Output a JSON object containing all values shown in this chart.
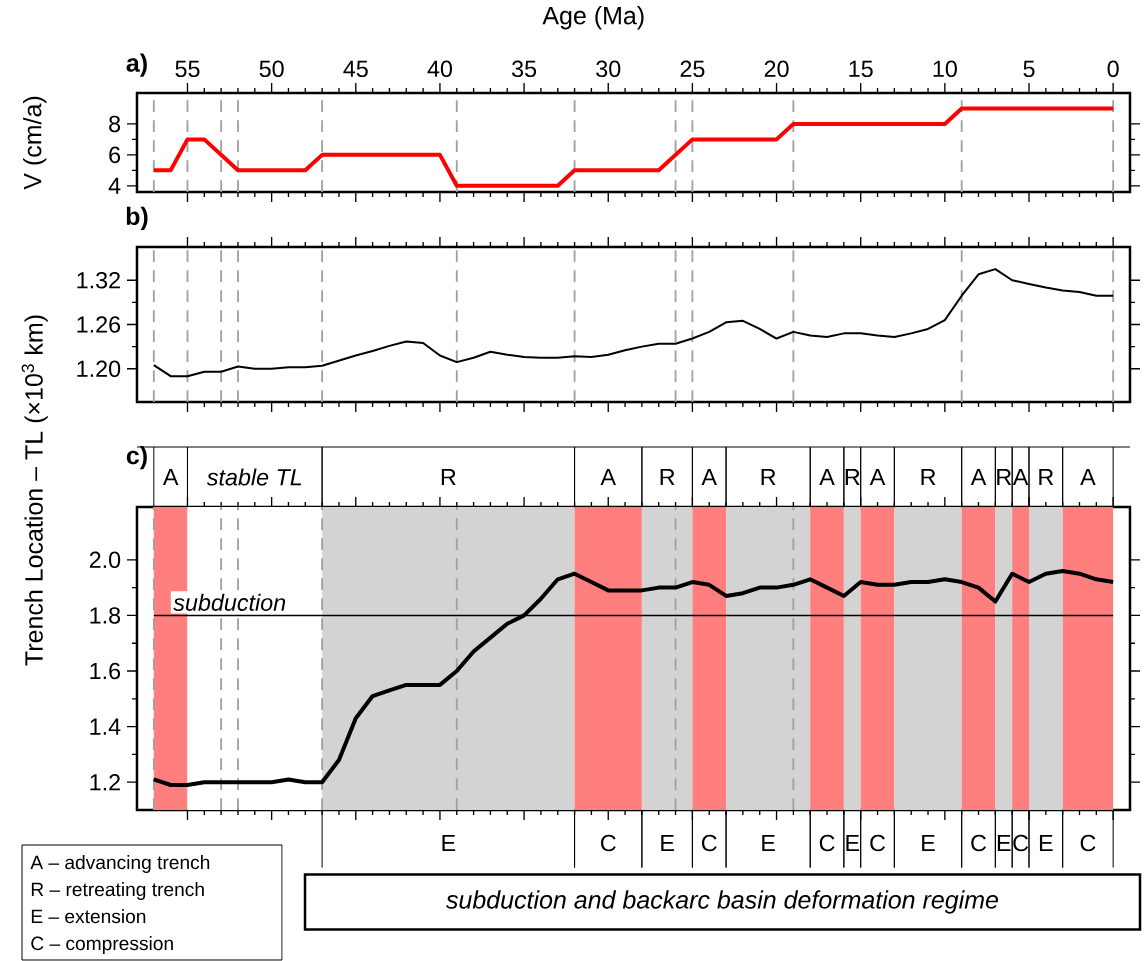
{
  "chart_data": [
    {
      "type": "line",
      "title": "a)",
      "xlabel": "Age (Ma)",
      "ylabel": "V (cm/a)",
      "color": "#ff0000",
      "x": [
        57,
        56,
        55,
        54,
        52,
        48,
        47,
        40,
        39,
        33,
        32,
        27,
        25,
        20,
        19,
        10,
        9,
        0
      ],
      "values": [
        5,
        5,
        7,
        7,
        5,
        5,
        6,
        6,
        4,
        4,
        5,
        5,
        7,
        7,
        8,
        8,
        9,
        9
      ],
      "xlim": [
        58,
        -1
      ],
      "ylim": [
        3.6,
        10
      ],
      "xticks": [
        55,
        50,
        45,
        40,
        35,
        30,
        25,
        20,
        15,
        10,
        5,
        0
      ],
      "yticks": [
        4,
        6,
        8
      ],
      "ref_lines": [
        {
          "axis": "x",
          "value": 57,
          "color": "#a0a0a0",
          "line_style": "dashed"
        },
        {
          "axis": "x",
          "value": 55,
          "color": "#a0a0a0",
          "line_style": "dashed"
        },
        {
          "axis": "x",
          "value": 53,
          "color": "#a0a0a0",
          "line_style": "dashed"
        },
        {
          "axis": "x",
          "value": 52,
          "color": "#a0a0a0",
          "line_style": "dashed"
        },
        {
          "axis": "x",
          "value": 47,
          "color": "#a0a0a0",
          "line_style": "dashed"
        },
        {
          "axis": "x",
          "value": 39,
          "color": "#a0a0a0",
          "line_style": "dashed"
        },
        {
          "axis": "x",
          "value": 32,
          "color": "#a0a0a0",
          "line_style": "dashed"
        },
        {
          "axis": "x",
          "value": 26,
          "color": "#a0a0a0",
          "line_style": "dashed"
        },
        {
          "axis": "x",
          "value": 25,
          "color": "#a0a0a0",
          "line_style": "dashed"
        },
        {
          "axis": "x",
          "value": 19,
          "color": "#a0a0a0",
          "line_style": "dashed"
        },
        {
          "axis": "x",
          "value": 9,
          "color": "#a0a0a0",
          "line_style": "dashed"
        },
        {
          "axis": "x",
          "value": 0,
          "color": "#a0a0a0",
          "line_style": "dashed"
        }
      ]
    },
    {
      "type": "line",
      "title": "b)",
      "color": "#000000",
      "tick_labels": "y",
      "x": [
        57,
        56,
        55,
        54,
        53,
        52,
        51,
        50,
        49,
        48,
        47,
        45,
        44,
        43,
        42,
        41,
        40,
        39,
        38,
        37,
        36,
        35,
        34,
        33,
        32,
        31,
        30,
        29,
        28,
        27,
        26,
        25,
        24,
        23,
        22,
        21,
        20,
        19,
        18,
        17,
        16,
        15,
        14,
        13,
        12,
        11,
        10,
        9,
        8,
        7,
        6,
        5,
        4,
        3,
        2,
        1,
        0
      ],
      "values": [
        1.205,
        1.19,
        1.19,
        1.196,
        1.196,
        1.203,
        1.2,
        1.2,
        1.202,
        1.202,
        1.204,
        1.218,
        1.224,
        1.231,
        1.237,
        1.235,
        1.218,
        1.209,
        1.215,
        1.223,
        1.219,
        1.216,
        1.215,
        1.215,
        1.217,
        1.216,
        1.219,
        1.225,
        1.23,
        1.234,
        1.234,
        1.241,
        1.25,
        1.263,
        1.265,
        1.254,
        1.241,
        1.25,
        1.245,
        1.243,
        1.248,
        1.248,
        1.245,
        1.243,
        1.248,
        1.254,
        1.266,
        1.299,
        1.328,
        1.335,
        1.32,
        1.315,
        1.31,
        1.306,
        1.304,
        1.299,
        1.299
      ],
      "xlim": [
        58,
        -1
      ],
      "ylim": [
        1.155,
        1.365
      ],
      "xticks": [
        55,
        50,
        45,
        40,
        35,
        30,
        25,
        20,
        15,
        10,
        5,
        0
      ],
      "yticks": [
        {
          "value": 1.2,
          "label": "1.20"
        },
        {
          "value": 1.26,
          "label": "1.26"
        },
        {
          "value": 1.32,
          "label": "1.32"
        }
      ],
      "ref_lines": [
        {
          "axis": "x",
          "value": 57,
          "color": "#a0a0a0",
          "line_style": "dashed"
        },
        {
          "axis": "x",
          "value": 55,
          "color": "#a0a0a0",
          "line_style": "dashed"
        },
        {
          "axis": "x",
          "value": 53,
          "color": "#a0a0a0",
          "line_style": "dashed"
        },
        {
          "axis": "x",
          "value": 52,
          "color": "#a0a0a0",
          "line_style": "dashed"
        },
        {
          "axis": "x",
          "value": 47,
          "color": "#a0a0a0",
          "line_style": "dashed"
        },
        {
          "axis": "x",
          "value": 39,
          "color": "#a0a0a0",
          "line_style": "dashed"
        },
        {
          "axis": "x",
          "value": 32,
          "color": "#a0a0a0",
          "line_style": "dashed"
        },
        {
          "axis": "x",
          "value": 26,
          "color": "#a0a0a0",
          "line_style": "dashed"
        },
        {
          "axis": "x",
          "value": 25,
          "color": "#a0a0a0",
          "line_style": "dashed"
        },
        {
          "axis": "x",
          "value": 19,
          "color": "#a0a0a0",
          "line_style": "dashed"
        },
        {
          "axis": "x",
          "value": 9,
          "color": "#a0a0a0",
          "line_style": "dashed"
        },
        {
          "axis": "x",
          "value": 0,
          "color": "#a0a0a0",
          "line_style": "dashed"
        }
      ]
    },
    {
      "type": "line",
      "title": "c)",
      "ylabel": "Trench Location – TL (×10$^{3}$ km)",
      "color": "#000000",
      "tick_labels": "y",
      "x": [
        57,
        56,
        55,
        54,
        53,
        52,
        51,
        50,
        49,
        48,
        47,
        46,
        45,
        44,
        43,
        42,
        41,
        40,
        39,
        38,
        37,
        36,
        35,
        34,
        33,
        32,
        31,
        30,
        29,
        28,
        27,
        26,
        25,
        24,
        23,
        22,
        21,
        20,
        19,
        18,
        17,
        16,
        15,
        14,
        13,
        12,
        11,
        10,
        9,
        8,
        7,
        6,
        5,
        4,
        3,
        2,
        1,
        0
      ],
      "values": [
        1.21,
        1.19,
        1.19,
        1.2,
        1.2,
        1.2,
        1.2,
        1.2,
        1.21,
        1.2,
        1.2,
        1.28,
        1.43,
        1.51,
        1.53,
        1.55,
        1.55,
        1.55,
        1.6,
        1.67,
        1.72,
        1.77,
        1.8,
        1.86,
        1.93,
        1.95,
        1.92,
        1.89,
        1.89,
        1.89,
        1.9,
        1.9,
        1.92,
        1.91,
        1.87,
        1.88,
        1.9,
        1.9,
        1.91,
        1.93,
        1.9,
        1.87,
        1.92,
        1.91,
        1.91,
        1.92,
        1.92,
        1.93,
        1.92,
        1.9,
        1.85,
        1.95,
        1.92,
        1.95,
        1.96,
        1.95,
        1.93,
        1.92
      ],
      "xlim": [
        58,
        -1
      ],
      "ylim": [
        1.1,
        2.19
      ],
      "xticks": [
        55,
        50,
        45,
        40,
        35,
        30,
        25,
        20,
        15,
        10,
        5,
        0
      ],
      "yticks": [
        {
          "value": 1.2,
          "label": "1.2"
        },
        {
          "value": 1.4,
          "label": "1.4"
        },
        {
          "value": 1.6,
          "label": "1.6"
        },
        {
          "value": 1.8,
          "label": "1.8"
        },
        {
          "value": 2.0,
          "label": "2.0"
        }
      ],
      "bands": [
        {
          "axis": "x",
          "from": 57,
          "to": 55,
          "label": "A",
          "color": "#ff7f7f"
        },
        {
          "axis": "x",
          "from": 55,
          "to": 47,
          "label": "stable TL",
          "color": "#ffffff"
        },
        {
          "axis": "x",
          "from": 47,
          "to": 32,
          "label": "R",
          "color": "#d3d3d3"
        },
        {
          "axis": "x",
          "from": 32,
          "to": 28,
          "label": "A",
          "color": "#ff7f7f"
        },
        {
          "axis": "x",
          "from": 28,
          "to": 25,
          "label": "R",
          "color": "#d3d3d3"
        },
        {
          "axis": "x",
          "from": 25,
          "to": 23,
          "label": "A",
          "color": "#ff7f7f"
        },
        {
          "axis": "x",
          "from": 23,
          "to": 18,
          "label": "R",
          "color": "#d3d3d3"
        },
        {
          "axis": "x",
          "from": 18,
          "to": 16,
          "label": "A",
          "color": "#ff7f7f"
        },
        {
          "axis": "x",
          "from": 16,
          "to": 15,
          "label": "R",
          "color": "#d3d3d3"
        },
        {
          "axis": "x",
          "from": 15,
          "to": 13,
          "label": "A",
          "color": "#ff7f7f"
        },
        {
          "axis": "x",
          "from": 13,
          "to": 9,
          "label": "R",
          "color": "#d3d3d3"
        },
        {
          "axis": "x",
          "from": 9,
          "to": 7,
          "label": "A",
          "color": "#ff7f7f"
        },
        {
          "axis": "x",
          "from": 7,
          "to": 6,
          "label": "R",
          "color": "#d3d3d3"
        },
        {
          "axis": "x",
          "from": 6,
          "to": 5,
          "label": "A",
          "color": "#ff7f7f"
        },
        {
          "axis": "x",
          "from": 5,
          "to": 3,
          "label": "R",
          "color": "#d3d3d3"
        },
        {
          "axis": "x",
          "from": 3,
          "to": 0,
          "label": "A",
          "color": "#ff7f7f"
        }
      ],
      "ref_lines": [
        {
          "axis": "x",
          "value": 57,
          "color": "#a0a0a0",
          "line_style": "dashed"
        },
        {
          "axis": "x",
          "value": 53,
          "color": "#a0a0a0",
          "line_style": "dashed"
        },
        {
          "axis": "x",
          "value": 52,
          "color": "#a0a0a0",
          "line_style": "dashed"
        },
        {
          "axis": "x",
          "value": 47,
          "color": "#a0a0a0",
          "line_style": "dashed"
        },
        {
          "axis": "x",
          "value": 39,
          "color": "#a0a0a0",
          "line_style": "dashed"
        },
        {
          "axis": "x",
          "value": 26,
          "color": "#a0a0a0",
          "line_style": "dashed"
        },
        {
          "axis": "x",
          "value": 19,
          "color": "#a0a0a0",
          "line_style": "dashed"
        },
        {
          "axis": "y",
          "value": 1.8,
          "label": "subduction",
          "color": "#000000",
          "line_style": "solid"
        }
      ],
      "annotations": [
        "E",
        "C",
        "E",
        "C",
        "E",
        "C",
        "E",
        "C",
        "E",
        "C",
        "E",
        "C",
        "E",
        "C",
        "A – advancing trench",
        "R – retreating trench",
        "E – extension",
        "C – compression",
        "subduction and backarc basin deformation regime"
      ]
    }
  ]
}
